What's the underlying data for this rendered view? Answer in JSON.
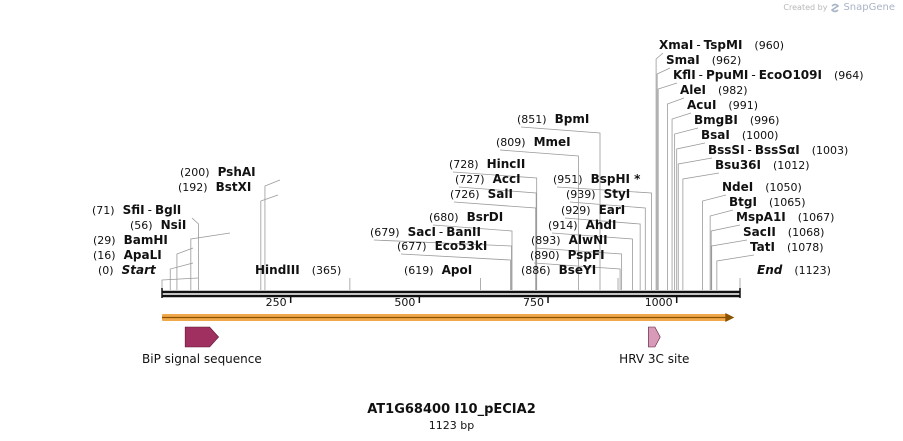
{
  "watermark": {
    "created_by": "Created by",
    "brand": "SnapGene"
  },
  "sequence": {
    "name": "AT1G68400 I10_pECIA2",
    "length_label": "1123 bp",
    "length": 1123
  },
  "ticks": [
    {
      "value": 250,
      "label": "250"
    },
    {
      "value": 500,
      "label": "500"
    },
    {
      "value": 750,
      "label": "750"
    },
    {
      "value": 1000,
      "label": "1000"
    }
  ],
  "sites": [
    {
      "id": "start",
      "pos_label": "(0)",
      "names": [
        "Start"
      ],
      "italic": true,
      "cut": 0
    },
    {
      "id": "apali",
      "pos_label": "(16)",
      "names": [
        "ApaLI"
      ],
      "cut": 16
    },
    {
      "id": "bamhi",
      "pos_label": "(29)",
      "names": [
        "BamHI"
      ],
      "cut": 29
    },
    {
      "id": "nsii",
      "pos_label": "(56)",
      "names": [
        "NsiI"
      ],
      "cut": 56
    },
    {
      "id": "sfii",
      "pos_label": "(71)",
      "names": [
        "SfiI",
        "BglI"
      ],
      "cut": 71
    },
    {
      "id": "bstxi",
      "pos_label": "(192)",
      "names": [
        "BstXI"
      ],
      "cut": 192
    },
    {
      "id": "pshai",
      "pos_label": "(200)",
      "names": [
        "PshAI"
      ],
      "cut": 200
    },
    {
      "id": "hindiii",
      "pos_label": "(365)",
      "names": [
        "HindIII"
      ],
      "cut": 365
    },
    {
      "id": "apoi",
      "pos_label": "(619)",
      "names": [
        "ApoI"
      ],
      "cut": 619
    },
    {
      "id": "eco53ki",
      "pos_label": "(677)",
      "names": [
        "Eco53kI"
      ],
      "cut": 677
    },
    {
      "id": "saci",
      "pos_label": "(679)",
      "names": [
        "SacI",
        "BanII"
      ],
      "cut": 679
    },
    {
      "id": "bsrdi",
      "pos_label": "(680)",
      "names": [
        "BsrDI"
      ],
      "cut": 680
    },
    {
      "id": "sali",
      "pos_label": "(726)",
      "names": [
        "SalI"
      ],
      "cut": 726
    },
    {
      "id": "acci",
      "pos_label": "(727)",
      "names": [
        "AccI"
      ],
      "cut": 727
    },
    {
      "id": "hincii",
      "pos_label": "(728)",
      "names": [
        "HincII"
      ],
      "cut": 728
    },
    {
      "id": "mmei",
      "pos_label": "(809)",
      "names": [
        "MmeI"
      ],
      "cut": 809
    },
    {
      "id": "bpmi",
      "pos_label": "(851)",
      "names": [
        "BpmI"
      ],
      "cut": 851
    },
    {
      "id": "bseyi",
      "pos_label": "(886)",
      "names": [
        "BseYI"
      ],
      "cut": 886
    },
    {
      "id": "pspfi",
      "pos_label": "(890)",
      "names": [
        "PspFI"
      ],
      "cut": 890
    },
    {
      "id": "alwni",
      "pos_label": "(893)",
      "names": [
        "AlwNI"
      ],
      "cut": 893
    },
    {
      "id": "ahdi",
      "pos_label": "(914)",
      "names": [
        "AhdI"
      ],
      "cut": 914
    },
    {
      "id": "eari",
      "pos_label": "(929)",
      "names": [
        "EarI"
      ],
      "cut": 929
    },
    {
      "id": "styi",
      "pos_label": "(939)",
      "names": [
        "StyI"
      ],
      "cut": 939
    },
    {
      "id": "bsphi",
      "pos_label": "(951)",
      "names": [
        "BspHI"
      ],
      "star": "*",
      "cut": 951
    },
    {
      "id": "xmai",
      "pos_label": "(960)",
      "names": [
        "XmaI",
        "TspMI"
      ],
      "cut": 960
    },
    {
      "id": "smai",
      "pos_label": "(962)",
      "names": [
        "SmaI"
      ],
      "cut": 962
    },
    {
      "id": "kfli",
      "pos_label": "(964)",
      "names": [
        "KflI",
        "PpuMI",
        "EcoO109I"
      ],
      "cut": 964
    },
    {
      "id": "alei",
      "pos_label": "(982)",
      "names": [
        "AleI"
      ],
      "cut": 982
    },
    {
      "id": "acui",
      "pos_label": "(991)",
      "names": [
        "AcuI"
      ],
      "cut": 991
    },
    {
      "id": "bmgbi",
      "pos_label": "(996)",
      "names": [
        "BmgBI"
      ],
      "cut": 996
    },
    {
      "id": "bsai",
      "pos_label": "(1000)",
      "names": [
        "BsaI"
      ],
      "cut": 1000
    },
    {
      "id": "bsssi",
      "pos_label": "(1003)",
      "names": [
        "BssSI",
        "BssSαI"
      ],
      "cut": 1003
    },
    {
      "id": "bsu36i",
      "pos_label": "(1012)",
      "names": [
        "Bsu36I"
      ],
      "cut": 1012
    },
    {
      "id": "ndei",
      "pos_label": "(1050)",
      "names": [
        "NdeI"
      ],
      "cut": 1050
    },
    {
      "id": "btgi",
      "pos_label": "(1065)",
      "names": [
        "BtgI"
      ],
      "cut": 1065
    },
    {
      "id": "mspa1i",
      "pos_label": "(1067)",
      "names": [
        "MspA1I"
      ],
      "cut": 1067
    },
    {
      "id": "sacii",
      "pos_label": "(1068)",
      "names": [
        "SacII"
      ],
      "cut": 1068
    },
    {
      "id": "tati",
      "pos_label": "(1078)",
      "names": [
        "TatI"
      ],
      "cut": 1078
    },
    {
      "id": "end",
      "pos_label": "(1123)",
      "names": [
        "End"
      ],
      "italic": true,
      "cut": 1123
    }
  ],
  "orf": {
    "start": 0,
    "end": 1110,
    "color": "#f0a84a",
    "line_color": "#8a5200"
  },
  "features": [
    {
      "id": "bip",
      "label": "BiP signal sequence",
      "start": 45,
      "end": 110,
      "color": "#a03060"
    },
    {
      "id": "hrv",
      "label": "HRV 3C site",
      "start": 945,
      "end": 968,
      "color": "#d89ab8"
    }
  ]
}
